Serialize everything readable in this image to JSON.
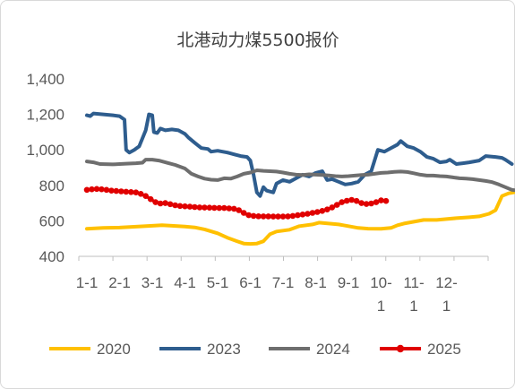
{
  "chart_data": {
    "type": "line",
    "title": "北港动力煤5500报价",
    "xlabel": "",
    "ylabel": "",
    "ylim": [
      400,
      1400
    ],
    "yticks": [
      "400",
      "600",
      "800",
      "1,000",
      "1,200",
      "1,400"
    ],
    "xticks": [
      [
        "1-1"
      ],
      [
        "2-1"
      ],
      [
        "3-1"
      ],
      [
        "4-1"
      ],
      [
        "5-1"
      ],
      [
        "6-1"
      ],
      [
        "7-1"
      ],
      [
        "8-1"
      ],
      [
        "9-1"
      ],
      [
        "10-",
        "1"
      ],
      [
        "11-",
        "1"
      ],
      [
        "12-",
        "1"
      ]
    ],
    "grid": false,
    "legend": "bottom",
    "series": [
      {
        "name": "2020",
        "color": "#FFC000",
        "marker": false,
        "points": [
          [
            0,
            555
          ],
          [
            0.5,
            560
          ],
          [
            1,
            562
          ],
          [
            1.5,
            567
          ],
          [
            2,
            572
          ],
          [
            2.3,
            575
          ],
          [
            2.6,
            572
          ],
          [
            3,
            568
          ],
          [
            3.3,
            563
          ],
          [
            3.6,
            552
          ],
          [
            4,
            530
          ],
          [
            4.3,
            505
          ],
          [
            4.6,
            485
          ],
          [
            4.8,
            472
          ],
          [
            5,
            470
          ],
          [
            5.2,
            472
          ],
          [
            5.4,
            485
          ],
          [
            5.6,
            525
          ],
          [
            5.8,
            540
          ],
          [
            6,
            545
          ],
          [
            6.2,
            550
          ],
          [
            6.5,
            570
          ],
          [
            6.9,
            580
          ],
          [
            7.1,
            590
          ],
          [
            7.4,
            585
          ],
          [
            7.7,
            580
          ],
          [
            8,
            570
          ],
          [
            8.3,
            560
          ],
          [
            8.6,
            556
          ],
          [
            9,
            555
          ],
          [
            9.3,
            560
          ],
          [
            9.5,
            575
          ],
          [
            9.7,
            585
          ],
          [
            10,
            595
          ],
          [
            10.3,
            605
          ],
          [
            10.7,
            605
          ],
          [
            11,
            610
          ],
          [
            11.3,
            615
          ],
          [
            11.7,
            620
          ],
          [
            12,
            625
          ],
          [
            12.3,
            640
          ],
          [
            12.5,
            660
          ],
          [
            12.7,
            740
          ],
          [
            12.9,
            755
          ],
          [
            13.2,
            765
          ],
          [
            13.5,
            770
          ]
        ]
      },
      {
        "name": "2023",
        "color": "#2E5D8E",
        "marker": false,
        "points": [
          [
            0,
            1195
          ],
          [
            0.1,
            1190
          ],
          [
            0.2,
            1205
          ],
          [
            0.5,
            1200
          ],
          [
            0.8,
            1195
          ],
          [
            1.0,
            1190
          ],
          [
            1.15,
            1170
          ],
          [
            1.2,
            1000
          ],
          [
            1.3,
            985
          ],
          [
            1.45,
            1000
          ],
          [
            1.6,
            1020
          ],
          [
            1.8,
            1110
          ],
          [
            1.9,
            1200
          ],
          [
            2.0,
            1195
          ],
          [
            2.05,
            1100
          ],
          [
            2.15,
            1095
          ],
          [
            2.25,
            1120
          ],
          [
            2.4,
            1110
          ],
          [
            2.6,
            1115
          ],
          [
            2.8,
            1110
          ],
          [
            3.0,
            1090
          ],
          [
            3.1,
            1070
          ],
          [
            3.3,
            1040
          ],
          [
            3.5,
            1010
          ],
          [
            3.7,
            1005
          ],
          [
            3.8,
            990
          ],
          [
            4.0,
            995
          ],
          [
            4.3,
            985
          ],
          [
            4.5,
            975
          ],
          [
            4.7,
            965
          ],
          [
            4.9,
            960
          ],
          [
            5.0,
            940
          ],
          [
            5.1,
            860
          ],
          [
            5.2,
            760
          ],
          [
            5.3,
            740
          ],
          [
            5.4,
            790
          ],
          [
            5.5,
            770
          ],
          [
            5.7,
            760
          ],
          [
            5.8,
            810
          ],
          [
            6.0,
            830
          ],
          [
            6.2,
            820
          ],
          [
            6.4,
            840
          ],
          [
            6.6,
            860
          ],
          [
            6.8,
            850
          ],
          [
            7.0,
            870
          ],
          [
            7.2,
            880
          ],
          [
            7.35,
            830
          ],
          [
            7.5,
            835
          ],
          [
            7.7,
            820
          ],
          [
            7.9,
            805
          ],
          [
            8.1,
            810
          ],
          [
            8.3,
            820
          ],
          [
            8.5,
            860
          ],
          [
            8.7,
            880
          ],
          [
            8.9,
            1000
          ],
          [
            9.1,
            990
          ],
          [
            9.3,
            1010
          ],
          [
            9.5,
            1030
          ],
          [
            9.6,
            1050
          ],
          [
            9.8,
            1020
          ],
          [
            10.0,
            1010
          ],
          [
            10.2,
            990
          ],
          [
            10.4,
            960
          ],
          [
            10.6,
            950
          ],
          [
            10.8,
            930
          ],
          [
            11.0,
            935
          ],
          [
            11.1,
            945
          ],
          [
            11.3,
            920
          ],
          [
            11.5,
            925
          ],
          [
            11.7,
            930
          ],
          [
            12.0,
            940
          ],
          [
            12.2,
            965
          ],
          [
            12.5,
            960
          ],
          [
            12.7,
            955
          ],
          [
            12.8,
            945
          ],
          [
            13.0,
            920
          ]
        ]
      },
      {
        "name": "2024",
        "color": "#6E6E6E",
        "marker": false,
        "points": [
          [
            0,
            935
          ],
          [
            0.2,
            930
          ],
          [
            0.4,
            920
          ],
          [
            0.8,
            918
          ],
          [
            1.0,
            920
          ],
          [
            1.2,
            922
          ],
          [
            1.5,
            925
          ],
          [
            1.7,
            928
          ],
          [
            1.8,
            945
          ],
          [
            2.0,
            945
          ],
          [
            2.2,
            940
          ],
          [
            2.5,
            925
          ],
          [
            2.7,
            915
          ],
          [
            3.0,
            895
          ],
          [
            3.2,
            865
          ],
          [
            3.4,
            850
          ],
          [
            3.6,
            838
          ],
          [
            3.8,
            832
          ],
          [
            4.0,
            830
          ],
          [
            4.2,
            840
          ],
          [
            4.4,
            838
          ],
          [
            4.6,
            850
          ],
          [
            4.8,
            865
          ],
          [
            5.0,
            872
          ],
          [
            5.2,
            885
          ],
          [
            5.4,
            882
          ],
          [
            5.6,
            880
          ],
          [
            5.8,
            878
          ],
          [
            6.0,
            872
          ],
          [
            6.2,
            865
          ],
          [
            6.4,
            860
          ],
          [
            6.6,
            858
          ],
          [
            6.8,
            862
          ],
          [
            7.0,
            860
          ],
          [
            7.2,
            858
          ],
          [
            7.4,
            856
          ],
          [
            7.6,
            852
          ],
          [
            7.8,
            850
          ],
          [
            8.0,
            852
          ],
          [
            8.2,
            855
          ],
          [
            8.4,
            858
          ],
          [
            8.6,
            860
          ],
          [
            8.8,
            865
          ],
          [
            9.0,
            870
          ],
          [
            9.2,
            872
          ],
          [
            9.4,
            876
          ],
          [
            9.6,
            878
          ],
          [
            9.8,
            875
          ],
          [
            10.0,
            868
          ],
          [
            10.2,
            860
          ],
          [
            10.4,
            855
          ],
          [
            10.6,
            855
          ],
          [
            10.8,
            852
          ],
          [
            11.0,
            850
          ],
          [
            11.2,
            845
          ],
          [
            11.4,
            840
          ],
          [
            11.6,
            838
          ],
          [
            11.8,
            835
          ],
          [
            12.0,
            830
          ],
          [
            12.2,
            825
          ],
          [
            12.4,
            818
          ],
          [
            12.6,
            805
          ],
          [
            12.8,
            790
          ],
          [
            13.0,
            775
          ],
          [
            13.2,
            770
          ],
          [
            13.5,
            775
          ]
        ]
      },
      {
        "name": "2025",
        "color": "#E00000",
        "marker": true,
        "points": [
          [
            0,
            775
          ],
          [
            0.15,
            778
          ],
          [
            0.3,
            780
          ],
          [
            0.45,
            778
          ],
          [
            0.6,
            775
          ],
          [
            0.75,
            770
          ],
          [
            0.9,
            768
          ],
          [
            1.05,
            766
          ],
          [
            1.2,
            764
          ],
          [
            1.35,
            762
          ],
          [
            1.5,
            760
          ],
          [
            1.65,
            752
          ],
          [
            1.8,
            740
          ],
          [
            1.95,
            722
          ],
          [
            2.1,
            705
          ],
          [
            2.25,
            698
          ],
          [
            2.4,
            700
          ],
          [
            2.55,
            694
          ],
          [
            2.7,
            688
          ],
          [
            2.85,
            684
          ],
          [
            3.0,
            682
          ],
          [
            3.15,
            680
          ],
          [
            3.3,
            678
          ],
          [
            3.45,
            676
          ],
          [
            3.6,
            675
          ],
          [
            3.75,
            674
          ],
          [
            3.9,
            673
          ],
          [
            4.05,
            672
          ],
          [
            4.2,
            672
          ],
          [
            4.35,
            670
          ],
          [
            4.5,
            668
          ],
          [
            4.65,
            660
          ],
          [
            4.8,
            645
          ],
          [
            4.95,
            632
          ],
          [
            5.1,
            628
          ],
          [
            5.25,
            626
          ],
          [
            5.4,
            625
          ],
          [
            5.55,
            625
          ],
          [
            5.7,
            624
          ],
          [
            5.85,
            624
          ],
          [
            6.0,
            624
          ],
          [
            6.15,
            625
          ],
          [
            6.3,
            628
          ],
          [
            6.45,
            632
          ],
          [
            6.6,
            636
          ],
          [
            6.75,
            640
          ],
          [
            6.9,
            645
          ],
          [
            7.05,
            650
          ],
          [
            7.2,
            656
          ],
          [
            7.35,
            664
          ],
          [
            7.5,
            676
          ],
          [
            7.65,
            690
          ],
          [
            7.8,
            705
          ],
          [
            7.95,
            713
          ],
          [
            8.1,
            718
          ],
          [
            8.25,
            712
          ],
          [
            8.4,
            700
          ],
          [
            8.55,
            695
          ],
          [
            8.7,
            698
          ],
          [
            8.85,
            705
          ],
          [
            9.0,
            715
          ],
          [
            9.15,
            712
          ]
        ]
      }
    ]
  }
}
